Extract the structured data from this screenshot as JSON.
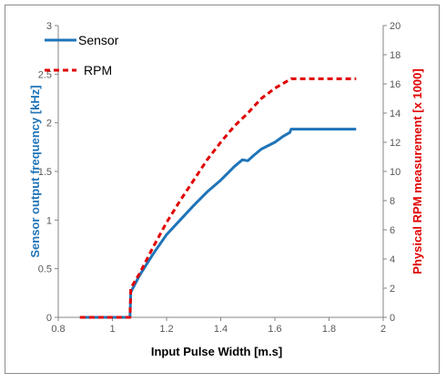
{
  "colors": {
    "sensor": "#1f74b8",
    "rpm": "#e00000",
    "axis": "#868686",
    "x_title": "#000000",
    "y_left_title": "#1f74b8",
    "y_right_title": "#e00000"
  },
  "chart_data": {
    "type": "line",
    "xlabel": "Input Pulse Width [m.s]",
    "ylabel": "Sensor output frequency [kHz]",
    "y2label": "Physical RPM measurement [x 1000]",
    "xlim": [
      0.8,
      2
    ],
    "ylim": [
      0,
      3
    ],
    "y2lim": [
      0,
      20
    ],
    "grid": false,
    "legend_position": "top-left",
    "x_ticks": [
      "0.8",
      "1",
      "1.2",
      "1.4",
      "1.6",
      "1.8",
      "2"
    ],
    "y_ticks": [
      "0",
      "0.5",
      "1",
      "1.5",
      "2",
      "2.5",
      "3"
    ],
    "y2_ticks": [
      "0",
      "2",
      "4",
      "6",
      "8",
      "10",
      "12",
      "14",
      "16",
      "18",
      "20"
    ],
    "series": [
      {
        "name": "Sensor",
        "axis": "left",
        "style": "solid",
        "x": [
          0.88,
          1.065,
          1.068,
          1.1,
          1.15,
          1.2,
          1.25,
          1.3,
          1.35,
          1.4,
          1.45,
          1.48,
          1.5,
          1.52,
          1.55,
          1.6,
          1.63,
          1.655,
          1.66,
          1.9
        ],
        "y": [
          0,
          0,
          0.26,
          0.43,
          0.65,
          0.85,
          1.0,
          1.15,
          1.29,
          1.41,
          1.55,
          1.62,
          1.61,
          1.66,
          1.73,
          1.8,
          1.86,
          1.9,
          1.935,
          1.935
        ]
      },
      {
        "name": "RPM",
        "axis": "right",
        "style": "dashed",
        "x": [
          0.88,
          1.065,
          1.068,
          1.1,
          1.15,
          1.2,
          1.25,
          1.3,
          1.35,
          1.4,
          1.45,
          1.5,
          1.55,
          1.6,
          1.66,
          1.9
        ],
        "y": [
          0,
          0,
          2.0,
          3.0,
          4.8,
          6.5,
          8.0,
          9.4,
          10.8,
          12.0,
          13.1,
          14.0,
          15.0,
          15.7,
          16.35,
          16.35
        ]
      }
    ]
  }
}
